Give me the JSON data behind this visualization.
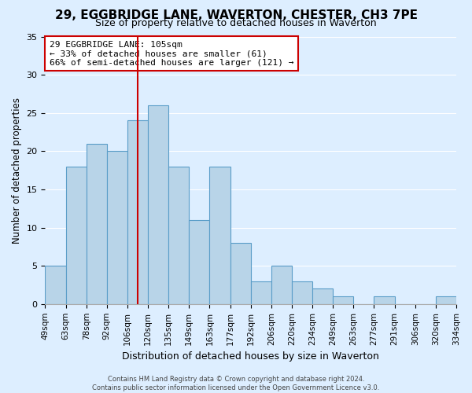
{
  "title_line1": "29, EGGBRIDGE LANE, WAVERTON, CHESTER, CH3 7PE",
  "title_line2": "Size of property relative to detached houses in Waverton",
  "xlabel": "Distribution of detached houses by size in Waverton",
  "ylabel": "Number of detached properties",
  "bin_edges": [
    "49sqm",
    "63sqm",
    "78sqm",
    "92sqm",
    "106sqm",
    "120sqm",
    "135sqm",
    "149sqm",
    "163sqm",
    "177sqm",
    "192sqm",
    "206sqm",
    "220sqm",
    "234sqm",
    "249sqm",
    "263sqm",
    "277sqm",
    "291sqm",
    "306sqm",
    "320sqm",
    "334sqm"
  ],
  "bar_heights": [
    5,
    18,
    21,
    20,
    24,
    26,
    18,
    11,
    18,
    8,
    3,
    5,
    3,
    2,
    1,
    0,
    1,
    0,
    0,
    1
  ],
  "bar_color": "#b8d4e8",
  "bar_edge_color": "#5a9dc8",
  "vline_pos": 4.5,
  "vline_color": "#cc0000",
  "annotation_title": "29 EGGBRIDGE LANE: 105sqm",
  "annotation_line2": "← 33% of detached houses are smaller (61)",
  "annotation_line3": "66% of semi-detached houses are larger (121) →",
  "annotation_box_color": "#ffffff",
  "annotation_box_edge": "#cc0000",
  "ylim": [
    0,
    35
  ],
  "yticks": [
    0,
    5,
    10,
    15,
    20,
    25,
    30,
    35
  ],
  "footer_line1": "Contains HM Land Registry data © Crown copyright and database right 2024.",
  "footer_line2": "Contains public sector information licensed under the Open Government Licence v3.0.",
  "bg_color": "#ddeeff"
}
